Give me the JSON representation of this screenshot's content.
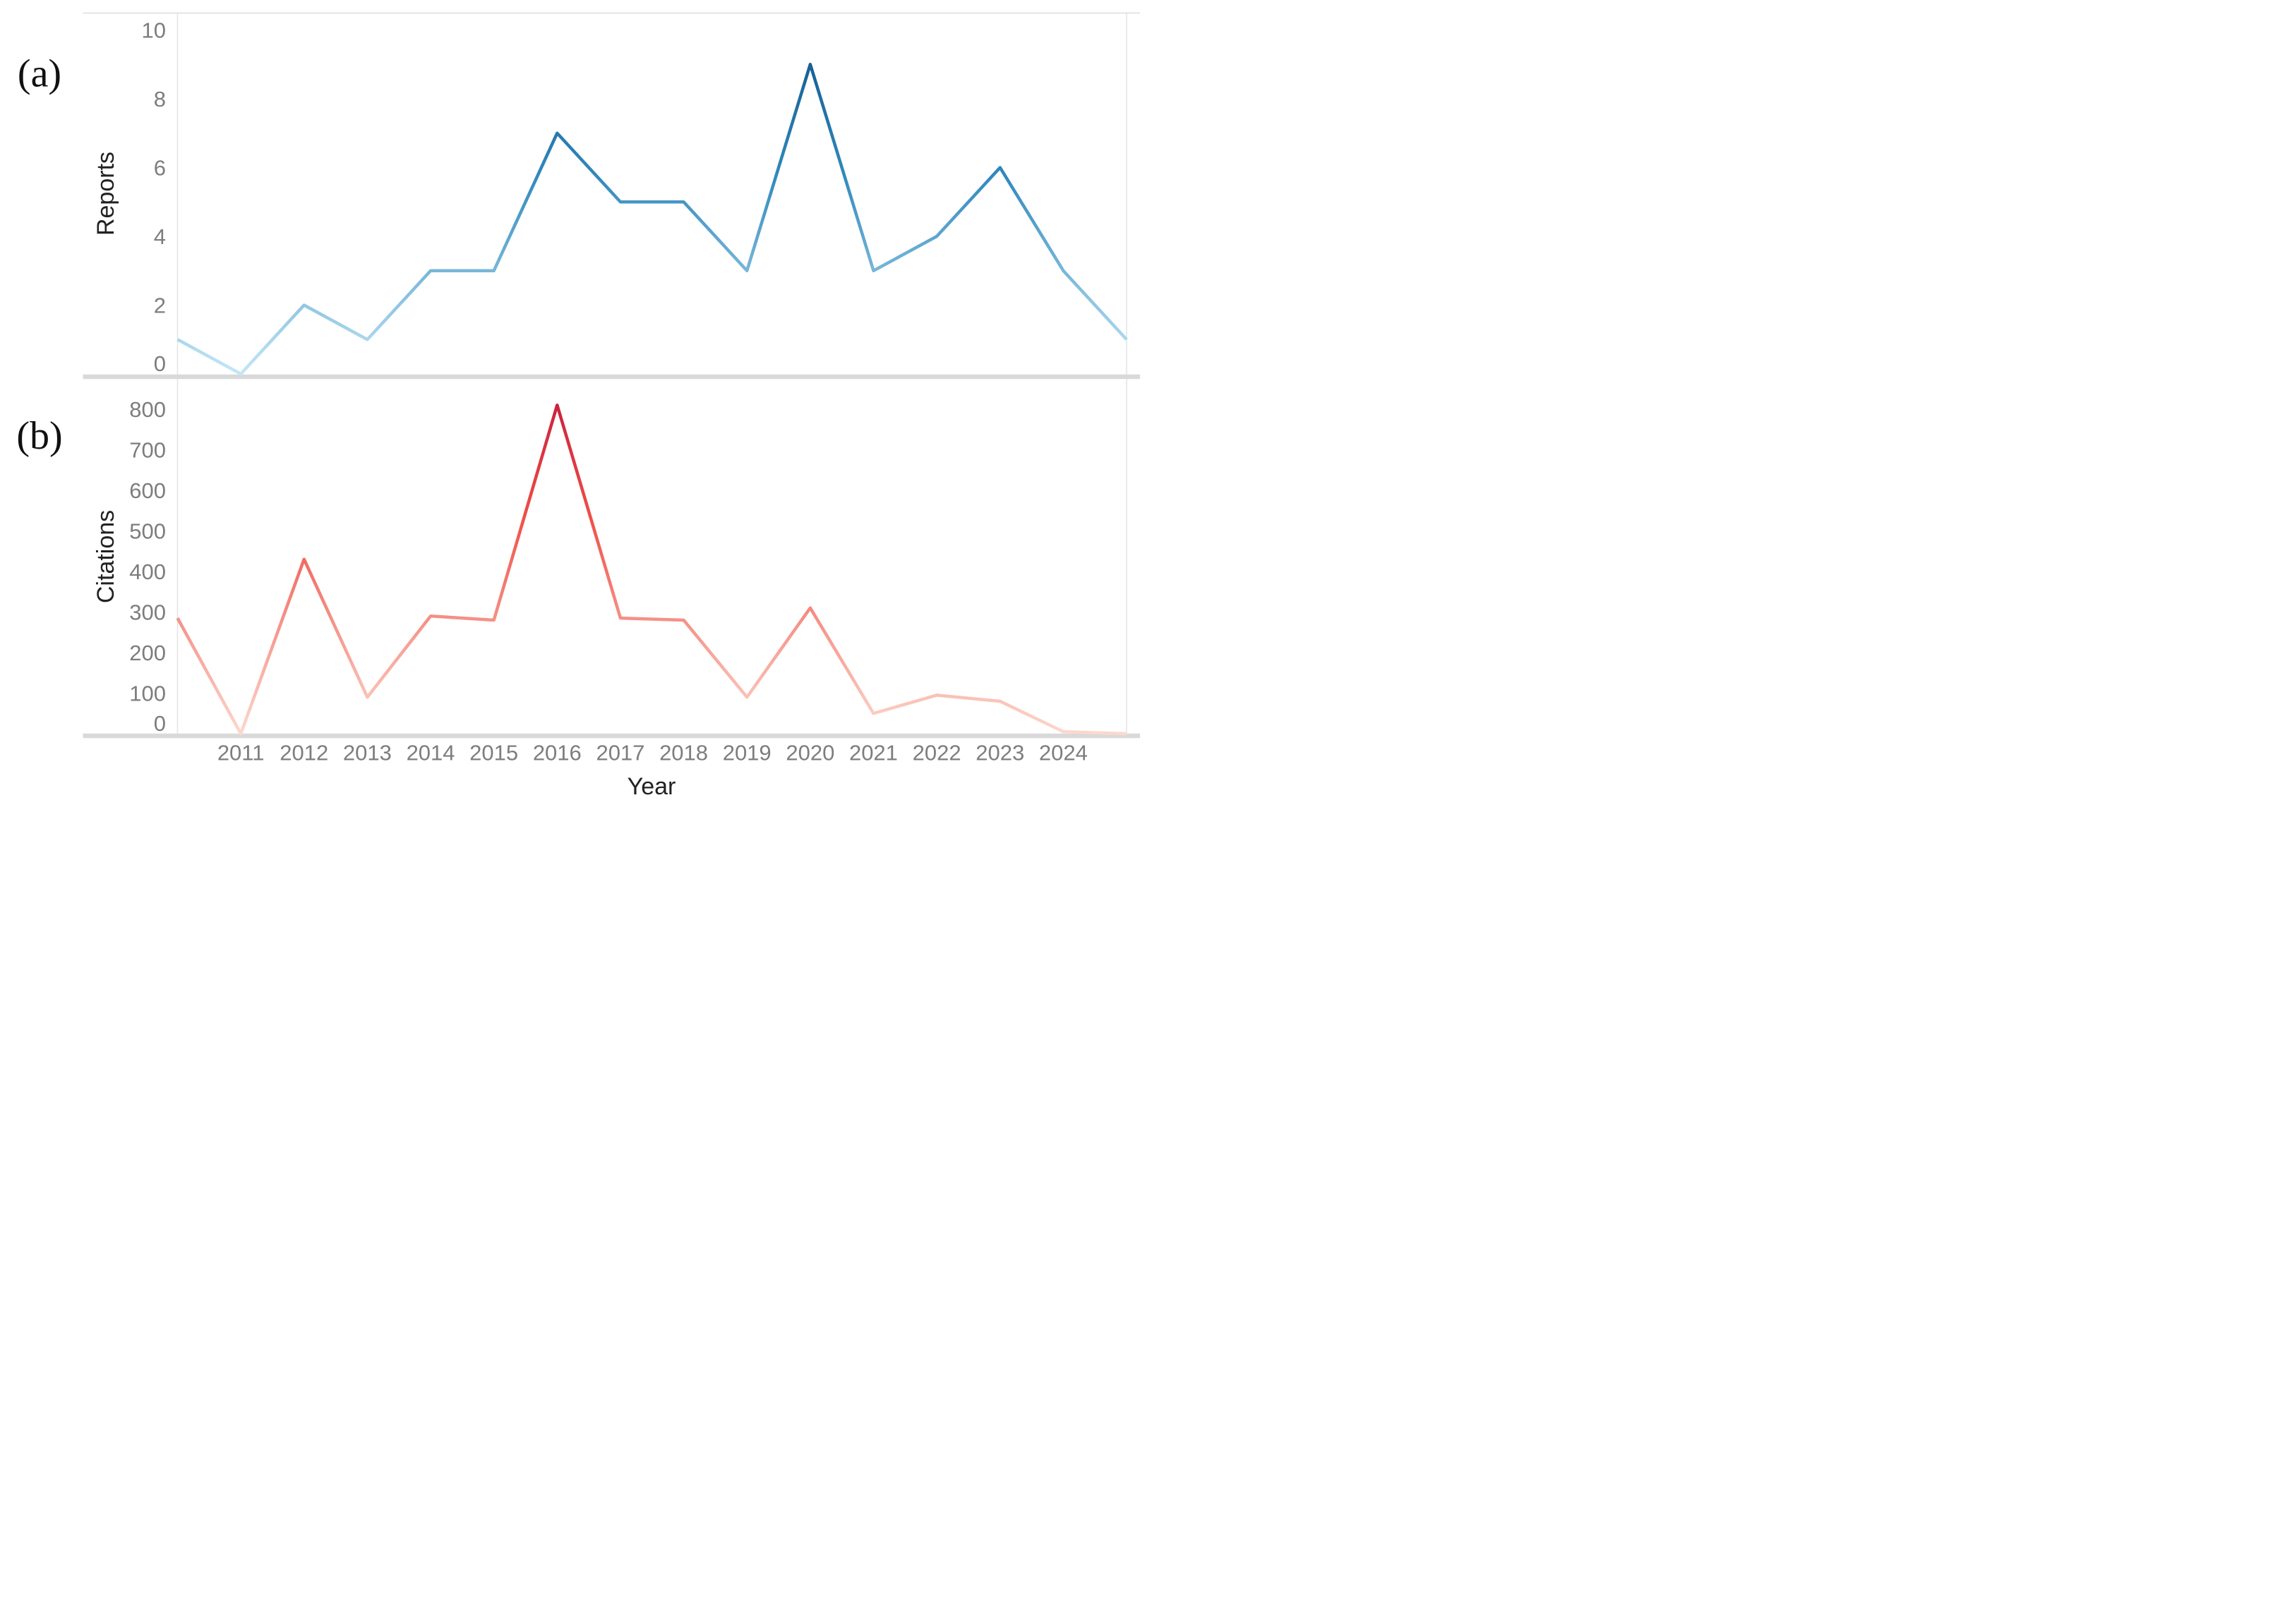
{
  "figure": {
    "panel_a_label": "(a)",
    "panel_b_label": "(b)",
    "xlabel": "Year",
    "background_color": "#ffffff",
    "tick_label_color": "#7d7d7d",
    "axis_title_color": "#222222",
    "panel_letter_color": "#111111",
    "border_thin_color": "#e3e3e3",
    "border_thick_color": "#d9d9d9"
  },
  "chart_data": [
    {
      "type": "line",
      "panel": "a",
      "title": "",
      "xlabel": "",
      "ylabel": "Reports",
      "x": [
        2010,
        2011,
        2012,
        2013,
        2014,
        2015,
        2016,
        2017,
        2018,
        2019,
        2020,
        2021,
        2022,
        2023,
        2024,
        2025
      ],
      "values": [
        1,
        0,
        2,
        1,
        3,
        3,
        7,
        5,
        5,
        3,
        9,
        3,
        4,
        6,
        3,
        1
      ],
      "xlim": [
        2010,
        2025
      ],
      "ylim": [
        0,
        10.5
      ],
      "y_ticks": [
        0,
        2,
        4,
        6,
        8,
        10
      ],
      "y_tick_labels": [
        "0",
        "2",
        "4",
        "6",
        "8",
        "10"
      ],
      "x_tick_labels": [
        "2011",
        "2012",
        "2013",
        "2014",
        "2015",
        "2016",
        "2017",
        "2018",
        "2019",
        "2020",
        "2021",
        "2022",
        "2023",
        "2024"
      ],
      "grid": false,
      "legend": null,
      "line_width": 9,
      "gradient_stops": [
        {
          "offset": "0%",
          "color": "#0b4d83"
        },
        {
          "offset": "45%",
          "color": "#3189bd"
        },
        {
          "offset": "100%",
          "color": "#c3e7f7"
        }
      ]
    },
    {
      "type": "line",
      "panel": "b",
      "title": "",
      "xlabel": "Year",
      "ylabel": "Citations",
      "x": [
        2010,
        2011,
        2012,
        2013,
        2014,
        2015,
        2016,
        2017,
        2018,
        2019,
        2020,
        2021,
        2022,
        2023,
        2024,
        2025
      ],
      "values": [
        285,
        0,
        430,
        90,
        290,
        280,
        810,
        285,
        280,
        90,
        310,
        50,
        95,
        80,
        5,
        0
      ],
      "xlim": [
        2010,
        2025
      ],
      "ylim": [
        0,
        870
      ],
      "y_ticks": [
        0,
        100,
        200,
        300,
        400,
        500,
        600,
        700,
        800
      ],
      "y_tick_labels": [
        "0",
        "100",
        "200",
        "300",
        "400",
        "500",
        "600",
        "700",
        "800"
      ],
      "x_tick_labels": [
        "2011",
        "2012",
        "2013",
        "2014",
        "2015",
        "2016",
        "2017",
        "2018",
        "2019",
        "2020",
        "2021",
        "2022",
        "2023",
        "2024"
      ],
      "grid": false,
      "legend": null,
      "line_width": 9,
      "gradient_stops": [
        {
          "offset": "0%",
          "color": "#c5173d"
        },
        {
          "offset": "38%",
          "color": "#ee4f46"
        },
        {
          "offset": "100%",
          "color": "#fdd8cd"
        }
      ]
    }
  ]
}
